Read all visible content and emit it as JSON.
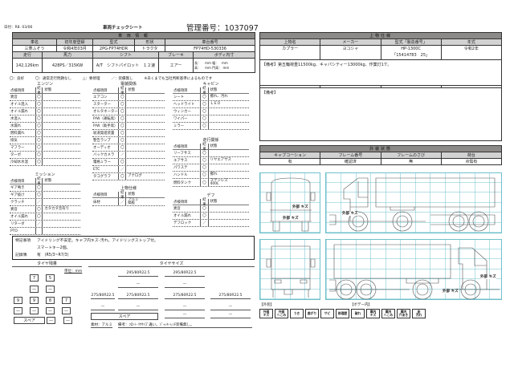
{
  "header": {
    "date": "日付：R8. 03/06",
    "title": "車両チェックシート",
    "mgmt_no": "管理番号：1037097"
  },
  "vehicle": {
    "title": "車 両 情 報",
    "labels1": [
      "車名",
      "初年度登録",
      "型式",
      "形状",
      "車台番号"
    ],
    "values1": [
      "三菱ふそう",
      "令和4年03月",
      "2PG-FP74HDR",
      "トラクタ",
      "FP74HD-530336"
    ],
    "labels2": [
      "走行",
      "馬力",
      "シフト",
      "ブレーキ",
      "ボディ内寸"
    ],
    "values2": [
      "142,126km",
      "428PS／315KW",
      "A/T　シフトパイロット　１２速",
      "エアー"
    ],
    "body_dims": {
      "l1": "長：",
      "u1": "mm",
      "w": "幅：",
      "u2": "mm",
      "h": "高：",
      "u3": "mm",
      "d": "門高：",
      "u4": "mm"
    }
  },
  "legend_text": [
    "〇：良好",
    "〇：通常走行問題なし",
    "△：要修理",
    "／：装備無し",
    "※あくまでも当社判断基準によるものです"
  ],
  "col_headers": [
    "点検項目",
    "結果",
    "状態"
  ],
  "sections": {
    "engine": {
      "title": "エンジン",
      "rows": [
        [
          "異音",
          "〇",
          ""
        ],
        [
          "オイル混入",
          "〇",
          ""
        ],
        [
          "オイル漏れ",
          "〇",
          ""
        ],
        [
          "水混入",
          "〇",
          ""
        ],
        [
          "水漏れ",
          "〇",
          ""
        ],
        [
          "燃料漏れ",
          "〇",
          ""
        ],
        [
          "排気",
          "〇",
          ""
        ],
        [
          "マフラー",
          "〇",
          ""
        ],
        [
          "ターボ",
          "〇",
          ""
        ],
        [
          "冷却水水温",
          "〇",
          ""
        ]
      ]
    },
    "mission": {
      "title": "ミッション",
      "rows": [
        [
          "ギア鳴き",
          "〇",
          ""
        ],
        [
          "ギア抜け",
          "〇",
          ""
        ],
        [
          "クラッチ",
          "／",
          ""
        ],
        [
          "異音",
          "〇",
          "カタカタ音有り"
        ],
        [
          "オイル漏れ",
          "〇",
          ""
        ],
        [
          "リターダ",
          "／",
          ""
        ],
        [
          "PTO",
          "",
          ""
        ]
      ]
    },
    "electric": {
      "title": "電装関係",
      "rows": [
        [
          "エアコン",
          "〇",
          ""
        ],
        [
          "スターター",
          "〇",
          ""
        ],
        [
          "オルタネーター",
          "〇",
          ""
        ],
        [
          "P/W（運転席）",
          "〇",
          ""
        ],
        [
          "P/W（助手席）",
          "〇",
          ""
        ],
        [
          "坂道発進装置",
          "〇",
          ""
        ],
        [
          "警告ランプ",
          "〇",
          ""
        ],
        [
          "オーディオ",
          "〇",
          ""
        ],
        [
          "バックカメラ",
          "／",
          ""
        ],
        [
          "電格ミラー",
          "〇",
          ""
        ],
        [
          "ETC",
          "／",
          ""
        ],
        [
          "タコグラフ",
          "〇",
          "アナログ"
        ]
      ]
    },
    "upper": {
      "title": "上物仕様",
      "rows": [
        [
          "床材",
          "／",
          "アルミ\n縞板"
        ]
      ]
    },
    "cabin": {
      "title": "キャビン",
      "rows": [
        [
          "シート",
          "〇",
          "擦れ、汚れ"
        ],
        [
          "ヘッドライト",
          "〇",
          "ＬＥＤ"
        ],
        [
          "ウィンカー",
          "〇",
          ""
        ],
        [
          "ワイパー",
          "〇",
          ""
        ],
        [
          "ミラー",
          "〇",
          ""
        ]
      ]
    },
    "running": {
      "title": "走行関係",
      "rows": [
        [
          "リーフサス",
          "〇",
          ""
        ],
        [
          "エアサス",
          "〇",
          "リヤエアサス"
        ],
        [
          "パワステ",
          "〇",
          ""
        ],
        [
          "ハンドル",
          "〇",
          "擦れ"
        ],
        [
          "燃料タンク",
          "〇",
          "ステンレス\n400L"
        ]
      ]
    },
    "diff": {
      "title": "デフ",
      "rows": [
        [
          "異音",
          "〇",
          ""
        ],
        [
          "オイル漏れ",
          "〇",
          ""
        ],
        [
          "デフロック",
          "／",
          ""
        ]
      ]
    }
  },
  "notes": {
    "label1": "特記事項",
    "line1": "アイドリング不安定。キャブ内キズ･汚れ。アイドリングストップ付。",
    "line2": "スマートキー2個。",
    "label2": "記録簿",
    "line3": "有　(R5/3~R7/3)"
  },
  "tire_remain": {
    "title": "タイヤ残量",
    "unit": "単位：mm",
    "front": [
      "7",
      "5"
    ],
    "front2": [
      "—",
      "—"
    ],
    "rear": [
      "9",
      "9",
      "8",
      "7"
    ],
    "rear2": [
      "—",
      "—",
      "—",
      "—"
    ],
    "spare": "スペア",
    "spare_vals": [
      "—",
      "—"
    ]
  },
  "tire_size": {
    "title": "タイヤサイズ",
    "front": [
      "295/80R22.5",
      "295/80R22.5"
    ],
    "front2": [
      "—",
      "—"
    ],
    "rear": [
      "275/80R22.5",
      "275/80R22.5",
      "275/80R22.5",
      "275/80R22.5"
    ],
    "rear2": [
      "—",
      "—",
      "—",
      "—"
    ],
    "spare": "スペア",
    "spare_vals": [
      "—",
      "—"
    ],
    "material": "素材：アルミ",
    "remark": "備考：ﾌﾛﾝﾄ･ﾘﾔｻｲｽﾞ違い。ｼﾞｬｯｷ･ﾚﾝﾁ装備無し。"
  },
  "upper_spec": {
    "title": "上物仕様",
    "labels": [
      "上物名",
      "メーカー",
      "型式「製造番号」",
      "年式"
    ],
    "values": [
      "カプラー",
      "ヨコシャ",
      "HP-1300C",
      "令和2年"
    ],
    "serial": "「15414783　25」",
    "remark1": "【備考】第五輪荷重11500kg、キャパシティー13000kg、作業灯1ケ。",
    "remark2": "【備考】"
  },
  "exterior": {
    "title": "外装状態",
    "labels": [
      "キャブコーション",
      "フレーム番号",
      "フレームのさび",
      "荷台"
    ],
    "values": [
      "有",
      "確認済",
      "無",
      "点傷有"
    ]
  },
  "damage_marks": {
    "front": [
      "外部\nキズ",
      "外部\nキズ"
    ],
    "side": "外部\nキズ",
    "rear_side": [
      "外部\nキズ",
      "外部\nキズ"
    ]
  },
  "damage_legend": {
    "exterior_title": "【外装】",
    "body_title": "【ボデー内】",
    "exterior": [
      "外部\nキズ",
      "外部\nへこみ",
      "うき",
      "曲がり",
      "サビ",
      "修理歴"
    ],
    "body": [
      "破れ",
      "庫内\nキズ",
      "庫内\nへこみ",
      "庫内\n穴あき",
      "床\n汚れ"
    ]
  },
  "colors": {
    "header_gray": "#8c8a88",
    "label_gray": "#d2d2d2",
    "grid_cyan": "#6fc0cc"
  }
}
